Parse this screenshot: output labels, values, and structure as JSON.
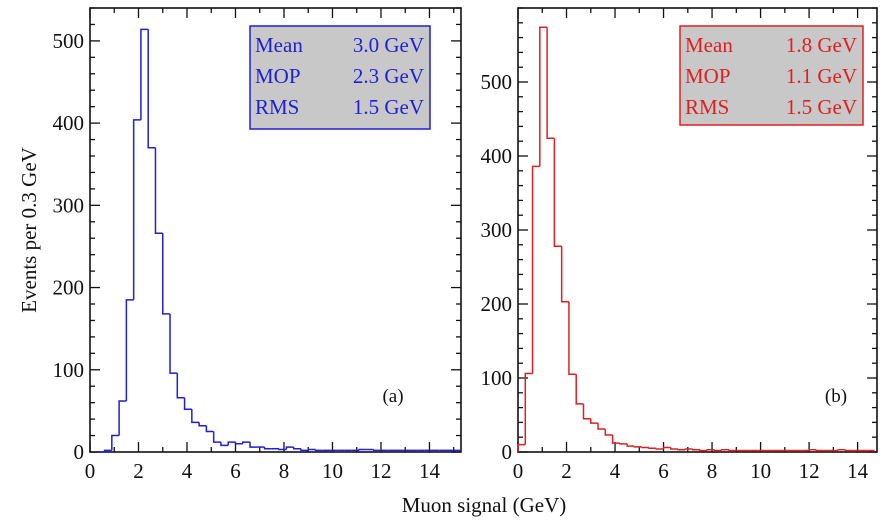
{
  "figure": {
    "xlabel": "Muon signal (GeV)",
    "ylabel": "Events per 0.3 GeV"
  },
  "chart_data": [
    {
      "type": "bar",
      "style": "step-histogram",
      "panel_label": "(a)",
      "color": "#1f1fd6",
      "stats_box": {
        "fill": "#c8c8c8",
        "rows": [
          {
            "label": "Mean",
            "value": "3.0 GeV"
          },
          {
            "label": "MOP",
            "value": "2.3 GeV"
          },
          {
            "label": "RMS",
            "value": "1.5 GeV"
          }
        ]
      },
      "xlim": [
        0,
        15.3
      ],
      "ylim": [
        0,
        540
      ],
      "xticks": [
        0,
        2,
        4,
        6,
        8,
        10,
        12,
        14
      ],
      "yticks": [
        0,
        100,
        200,
        300,
        400,
        500
      ],
      "bin_width": 0.3,
      "bin_start": 0.3,
      "values": [
        0,
        2,
        20,
        62,
        185,
        404,
        514,
        370,
        266,
        168,
        96,
        66,
        52,
        36,
        32,
        25,
        12,
        8,
        12,
        10,
        12,
        6,
        6,
        4,
        4,
        3,
        6,
        4,
        2,
        3,
        2,
        2,
        2,
        2,
        2,
        2,
        3,
        3,
        2,
        2,
        2,
        2,
        2,
        2,
        2,
        2,
        2,
        2,
        2,
        2
      ]
    },
    {
      "type": "bar",
      "style": "step-histogram",
      "panel_label": "(b)",
      "color": "#e02020",
      "stats_box": {
        "fill": "#c8c8c8",
        "rows": [
          {
            "label": "Mean",
            "value": "1.8 GeV"
          },
          {
            "label": "MOP",
            "value": "1.1 GeV"
          },
          {
            "label": "RMS",
            "value": "1.5 GeV"
          }
        ]
      },
      "xlim": [
        0,
        14.8
      ],
      "ylim": [
        0,
        600
      ],
      "xticks": [
        0,
        2,
        4,
        6,
        8,
        10,
        12,
        14
      ],
      "yticks": [
        0,
        100,
        200,
        300,
        400,
        500
      ],
      "bin_width": 0.3,
      "bin_start": 0.0,
      "values": [
        10,
        106,
        386,
        574,
        424,
        278,
        203,
        105,
        65,
        45,
        39,
        31,
        23,
        12,
        11,
        8,
        7,
        6,
        5,
        4,
        6,
        4,
        3,
        4,
        3,
        2,
        3,
        2,
        3,
        2,
        2,
        2,
        2,
        2,
        2,
        2,
        2,
        2,
        2,
        2,
        3,
        2,
        2,
        2,
        3,
        2,
        2,
        2,
        2
      ]
    }
  ]
}
